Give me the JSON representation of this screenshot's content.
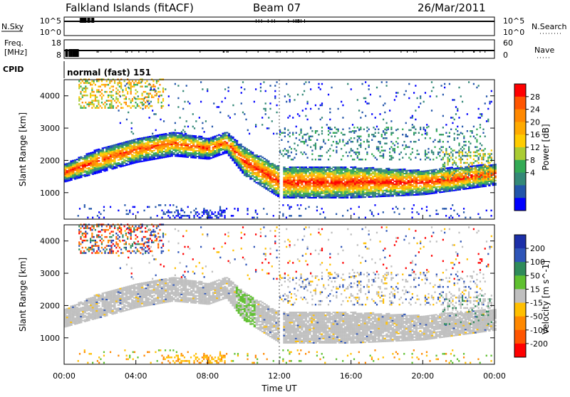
{
  "header": {
    "station": "Falkland Islands (fitACF)",
    "beam": "Beam 07",
    "date": "26/Mar/2011"
  },
  "panels": {
    "nsky": {
      "label": "N.Sky",
      "ticks": [
        "10^5",
        "10^0"
      ],
      "right_label": "N.Search",
      "right_ticks": [
        "10^5",
        "10^0"
      ]
    },
    "freq": {
      "label_line1": "Freq.",
      "label_line2": "[MHz]",
      "ticks": [
        "18",
        "8"
      ],
      "right_label": "Nave",
      "right_ticks": [
        "60",
        "0"
      ]
    },
    "cpid": {
      "label": "CPID",
      "text": "normal (fast) 151"
    }
  },
  "axes": {
    "ylabel": "Slant Range [km]",
    "xlabel": "Time UT",
    "xticks": [
      "00:00",
      "04:00",
      "08:00",
      "12:00",
      "16:00",
      "20:00",
      "00:00"
    ],
    "yticks_power": [
      "4000",
      "3000",
      "2000",
      "1000"
    ],
    "yticks_velocity": [
      "4000",
      "3000",
      "2000",
      "1000"
    ]
  },
  "colorbars": {
    "power": {
      "label": "Power [dB]",
      "ticks": [
        "28",
        "24",
        "20",
        "16",
        "12",
        "8",
        "4"
      ],
      "colors": [
        "#ff0000",
        "#ff5500",
        "#ff8800",
        "#ffaa00",
        "#ffcc00",
        "#aacc33",
        "#33aa55",
        "#338877",
        "#2255aa",
        "#0000ff"
      ]
    },
    "velocity": {
      "label": "Velocity [m s^-1]",
      "ticks": [
        "200",
        "100",
        "50",
        "15",
        "-15",
        "-50",
        "-100",
        "-200"
      ],
      "colors": [
        "#1c2fa8",
        "#2e55b8",
        "#2f8b5a",
        "#5fc030",
        "#bfbfbf",
        "#ffbf00",
        "#ff8800",
        "#ff5500",
        "#ff0000"
      ]
    }
  },
  "chart_data": [
    {
      "type": "heatmap",
      "title": "Power",
      "xlabel": "Time UT",
      "ylabel": "Slant Range [km]",
      "x_range_hours": [
        0,
        24
      ],
      "ylim": [
        180,
        4500
      ],
      "zlabel": "Power [dB]",
      "zlim": [
        0,
        30
      ],
      "main_echo_band": [
        {
          "t": 0,
          "lower": 1400,
          "upper": 1800
        },
        {
          "t": 2,
          "lower": 1700,
          "upper": 2300
        },
        {
          "t": 4,
          "lower": 2000,
          "upper": 2600
        },
        {
          "t": 6,
          "lower": 2200,
          "upper": 2800
        },
        {
          "t": 8,
          "lower": 2100,
          "upper": 2600
        },
        {
          "t": 9,
          "lower": 2300,
          "upper": 2800
        },
        {
          "t": 10,
          "lower": 1600,
          "upper": 2300
        },
        {
          "t": 12,
          "lower": 900,
          "upper": 1700
        },
        {
          "t": 16,
          "lower": 900,
          "upper": 1700
        },
        {
          "t": 20,
          "lower": 1000,
          "upper": 1600
        },
        {
          "t": 24,
          "lower": 1300,
          "upper": 1800
        }
      ]
    },
    {
      "type": "heatmap",
      "title": "Velocity",
      "xlabel": "Time UT",
      "ylabel": "Slant Range [km]",
      "x_range_hours": [
        0,
        24
      ],
      "ylim": [
        180,
        4500
      ],
      "zlabel": "Velocity [m s^-1]",
      "zlim": [
        -250,
        250
      ]
    }
  ]
}
